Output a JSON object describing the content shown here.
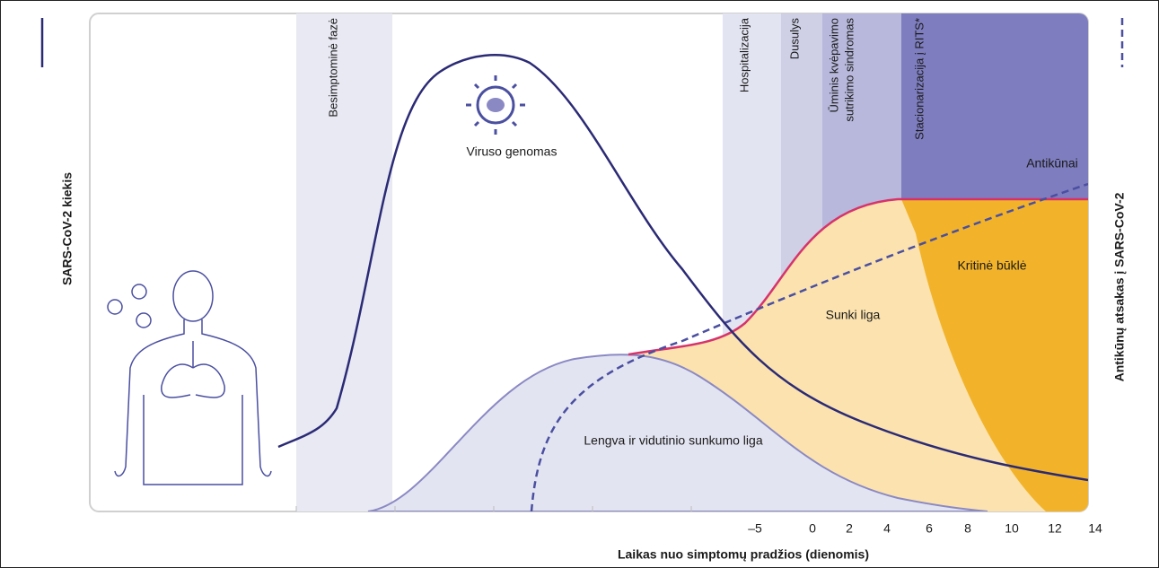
{
  "left_axis_label": "SARS-CoV-2 kiekis",
  "right_axis_label": "Antikūnų atsakas į SARS-CoV-2",
  "x_axis_label": "Laikas nuo simptomų pradžios (dienomis)",
  "x_ticks": [
    "–5",
    "0",
    "2",
    "4",
    "6",
    "8",
    "10",
    "12",
    "14"
  ],
  "phases": [
    {
      "lines": [
        "Besimptominė fazė"
      ]
    },
    {
      "lines": [
        "Hospitalizacija"
      ]
    },
    {
      "lines": [
        "Dusulys"
      ]
    },
    {
      "lines": [
        "Ūminis kvėpavimo",
        "sutrikimo sindromas"
      ]
    },
    {
      "lines": [
        "Stacionarizacija į RITS*"
      ]
    }
  ],
  "labels": {
    "virus": "Viruso genomas",
    "antibodies": "Antikūnai",
    "severe": "Sunki liga",
    "critical": "Kritinė būklė",
    "mild": "Lengva ir vidutinio sunkumo liga"
  }
}
